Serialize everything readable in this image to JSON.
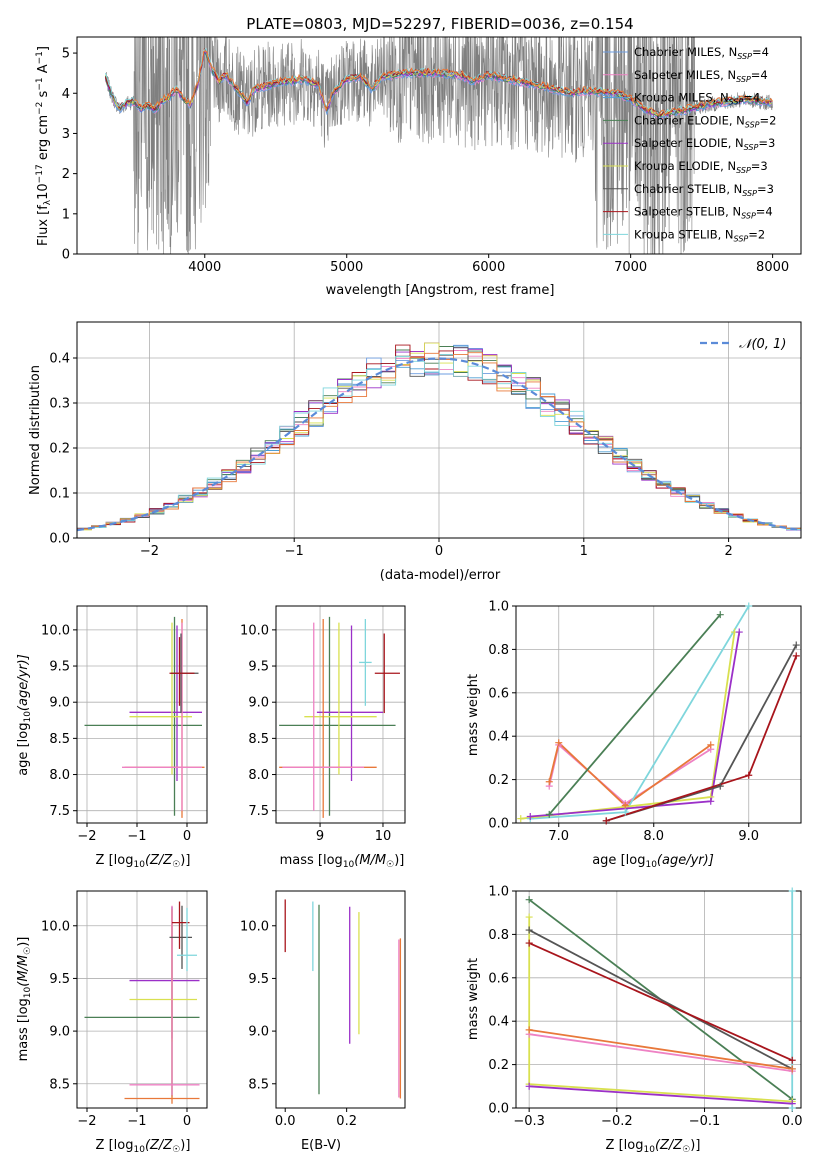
{
  "figure": {
    "title": "PLATE=0803, MJD=52297, FIBERID=0036, z=0.154"
  },
  "colors": {
    "chabrier_miles": "#6e9de0",
    "salpeter_miles": "#ee82c4",
    "kroupa_miles": "#4f9fd4",
    "chabrier_elodie": "#4a7f55",
    "salpeter_elodie": "#9b30c8",
    "kroupa_elodie": "#d9e050",
    "chabrier_stelib": "#555555",
    "salpeter_stelib": "#a8151c",
    "kroupa_stelib": "#7fd6dc",
    "orange": "#e8783a",
    "data": "#808080",
    "normal": "#5b8bd8"
  },
  "chart_data": [
    {
      "id": "spectrum",
      "type": "line",
      "xlabel": "wavelength [Angstrom, rest frame]",
      "ylabel": "Flux [f",
      "ylabel_parts": {
        "lam": "λ",
        "a": "10",
        "b": "−17",
        "c": " erg cm",
        "d": "−2",
        "e": " s",
        "f": "−1",
        "g": " A",
        "h": "−1",
        "i": "]"
      },
      "xlim": [
        3100,
        8200
      ],
      "ylim": [
        0,
        5.4
      ],
      "xticks": [
        4000,
        5000,
        6000,
        7000,
        8000
      ],
      "yticks": [
        0,
        1,
        2,
        3,
        4,
        5
      ],
      "grid": false,
      "legend_position": "top-right",
      "legend": [
        {
          "name": "Chabrier MILES, N",
          "sub": "SSP",
          "val": "=4",
          "color": "#6e9de0"
        },
        {
          "name": "Salpeter MILES, N",
          "sub": "SSP",
          "val": "=4",
          "color": "#ee82c4"
        },
        {
          "name": "Kroupa MILES, N",
          "sub": "SSP",
          "val": "=4",
          "color": "#4f9fd4"
        },
        {
          "name": "Chabrier ELODIE, N",
          "sub": "SSP",
          "val": "=2",
          "color": "#4a7f55"
        },
        {
          "name": "Salpeter ELODIE, N",
          "sub": "SSP",
          "val": "=3",
          "color": "#9b30c8"
        },
        {
          "name": "Kroupa ELODIE, N",
          "sub": "SSP",
          "val": "=3",
          "color": "#d9e050"
        },
        {
          "name": "Chabrier STELIB, N",
          "sub": "SSP",
          "val": "=3",
          "color": "#555555"
        },
        {
          "name": "Salpeter STELIB, N",
          "sub": "SSP",
          "val": "=4",
          "color": "#a8151c"
        },
        {
          "name": "Kroupa STELIB, N",
          "sub": "SSP",
          "val": "=2",
          "color": "#7fd6dc"
        }
      ],
      "continuum": [
        [
          3300,
          4.4
        ],
        [
          3350,
          3.9
        ],
        [
          3400,
          3.6
        ],
        [
          3450,
          3.75
        ],
        [
          3500,
          3.8
        ],
        [
          3550,
          3.6
        ],
        [
          3600,
          3.7
        ],
        [
          3650,
          3.6
        ],
        [
          3700,
          3.8
        ],
        [
          3750,
          3.9
        ],
        [
          3800,
          4.1
        ],
        [
          3850,
          3.85
        ],
        [
          3900,
          3.7
        ],
        [
          3950,
          4.2
        ],
        [
          4000,
          5.1
        ],
        [
          4050,
          4.6
        ],
        [
          4100,
          4.3
        ],
        [
          4150,
          4.45
        ],
        [
          4200,
          4.2
        ],
        [
          4250,
          4.0
        ],
        [
          4300,
          3.75
        ],
        [
          4350,
          4.1
        ],
        [
          4400,
          4.15
        ],
        [
          4500,
          4.25
        ],
        [
          4600,
          4.3
        ],
        [
          4700,
          4.35
        ],
        [
          4800,
          4.2
        ],
        [
          4860,
          3.55
        ],
        [
          4900,
          4.0
        ],
        [
          5000,
          4.35
        ],
        [
          5100,
          4.4
        ],
        [
          5175,
          4.1
        ],
        [
          5250,
          4.4
        ],
        [
          5400,
          4.5
        ],
        [
          5600,
          4.5
        ],
        [
          5800,
          4.45
        ],
        [
          5890,
          4.3
        ],
        [
          6000,
          4.45
        ],
        [
          6200,
          4.3
        ],
        [
          6400,
          4.15
        ],
        [
          6563,
          4.0
        ],
        [
          6700,
          4.05
        ],
        [
          6900,
          4.0
        ],
        [
          7000,
          3.85
        ],
        [
          7100,
          3.6
        ],
        [
          7200,
          3.45
        ],
        [
          7400,
          3.6
        ],
        [
          7600,
          3.75
        ],
        [
          7800,
          3.85
        ],
        [
          8000,
          3.75
        ]
      ]
    },
    {
      "id": "residuals",
      "type": "histogram",
      "xlabel": "(data-model)/error",
      "ylabel": "Normed distribution",
      "xlim": [
        -2.5,
        2.5
      ],
      "ylim": [
        0,
        0.48
      ],
      "xticks": [
        -2,
        -1,
        0,
        1,
        2
      ],
      "yticks": [
        0.0,
        0.1,
        0.2,
        0.3,
        0.4
      ],
      "grid": true,
      "bin_width": 0.1,
      "legend_position": "top-right",
      "legend": [
        {
          "name": "𝒩(0, 1)",
          "color": "#5b8bd8",
          "dashed": true
        }
      ]
    },
    {
      "id": "age_vs_Z",
      "type": "errorbar",
      "xlabel": "Z [log",
      "xlabel_sub": "10",
      "xlabel_tail": "(Z/Z",
      "xlabel_sun": "☉",
      "xlabel_end": ")]",
      "ylabel": "age  [log",
      "ylabel_sub": "10",
      "ylabel_tail": "(age/yr)]",
      "xlim": [
        -2.2,
        0.4
      ],
      "ylim": [
        7.33,
        10.33
      ],
      "xticks": [
        -2,
        -1,
        0
      ],
      "yticks": [
        7.5,
        8.0,
        8.5,
        9.0,
        9.5,
        10.0
      ],
      "grid": true,
      "points": [
        {
          "x": -0.25,
          "y": 8.68,
          "xerr": [
            1.8,
            0.55
          ],
          "yerr": [
            1.25,
            1.5
          ],
          "color": "#4a7f55"
        },
        {
          "x": -0.2,
          "y": 8.86,
          "xerr": [
            0.95,
            0.5
          ],
          "yerr": [
            0.95,
            1.2
          ],
          "color": "#9b30c8"
        },
        {
          "x": -0.3,
          "y": 8.8,
          "xerr": [
            0.85,
            0.4
          ],
          "yerr": [
            0.8,
            1.3
          ],
          "color": "#d9e050"
        },
        {
          "x": -0.1,
          "y": 8.1,
          "xerr": [
            1.15,
            0.45
          ],
          "yerr": [
            0.7,
            2.05
          ],
          "color": "#e8783a"
        },
        {
          "x": -0.1,
          "y": 8.1,
          "xerr": [
            1.2,
            0.4
          ],
          "yerr": [
            0.6,
            2.0
          ],
          "color": "#ee82c4"
        },
        {
          "x": -0.12,
          "y": 9.4,
          "xerr": [
            0.2,
            0.35
          ],
          "yerr": [
            0.55,
            0.55
          ],
          "color": "#555555"
        },
        {
          "x": -0.15,
          "y": 9.4,
          "xerr": [
            0.2,
            0.3
          ],
          "yerr": [
            0.45,
            0.5
          ],
          "color": "#a8151c"
        }
      ]
    },
    {
      "id": "age_vs_mass",
      "type": "errorbar",
      "xlabel": "mass [log",
      "xlabel_sub": "10",
      "xlabel_tail": "(M/M",
      "xlabel_sun": "☉",
      "xlabel_end": ")]",
      "xlim": [
        8.3,
        10.35
      ],
      "ylim": [
        7.33,
        10.33
      ],
      "xticks": [
        9,
        10
      ],
      "yticks": [
        7.5,
        8.0,
        8.5,
        9.0,
        9.5,
        10.0
      ],
      "grid": true,
      "points": [
        {
          "x": 9.15,
          "y": 8.68,
          "xerr": [
            0.8,
            1.05
          ],
          "yerr": [
            1.25,
            1.5
          ],
          "color": "#4a7f55"
        },
        {
          "x": 9.5,
          "y": 8.86,
          "xerr": [
            0.55,
            0.5
          ],
          "yerr": [
            0.95,
            1.2
          ],
          "color": "#9b30c8"
        },
        {
          "x": 9.3,
          "y": 8.8,
          "xerr": [
            0.55,
            0.6
          ],
          "yerr": [
            0.8,
            1.3
          ],
          "color": "#d9e050"
        },
        {
          "x": 9.05,
          "y": 8.1,
          "xerr": [
            0.7,
            0.85
          ],
          "yerr": [
            0.7,
            2.05
          ],
          "color": "#e8783a"
        },
        {
          "x": 8.9,
          "y": 8.1,
          "xerr": [
            0.5,
            0.8
          ],
          "yerr": [
            0.6,
            2.0
          ],
          "color": "#ee82c4"
        },
        {
          "x": 9.72,
          "y": 9.55,
          "xerr": [
            0.1,
            0.1
          ],
          "yerr": [
            0.6,
            0.6
          ],
          "color": "#7fd6dc"
        },
        {
          "x": 10.02,
          "y": 9.4,
          "xerr": [
            0.15,
            0.25
          ],
          "yerr": [
            0.55,
            0.55
          ],
          "color": "#a8151c"
        }
      ]
    },
    {
      "id": "massweight_vs_age",
      "type": "line",
      "xlabel": "age  [log",
      "xlabel_sub": "10",
      "xlabel_tail": "(age/yr)]",
      "ylabel": "mass weight",
      "xlim": [
        6.55,
        9.55
      ],
      "ylim": [
        0,
        1
      ],
      "xticks": [
        7,
        8,
        9
      ],
      "yticks": [
        0.0,
        0.2,
        0.4,
        0.6,
        0.8,
        1.0
      ],
      "grid": true,
      "series": [
        {
          "color": "#ee82c4",
          "points": [
            [
              6.9,
              0.17
            ],
            [
              7.0,
              0.36
            ],
            [
              7.7,
              0.09
            ],
            [
              8.6,
              0.34
            ]
          ]
        },
        {
          "color": "#e8783a",
          "points": [
            [
              6.9,
              0.19
            ],
            [
              7.0,
              0.37
            ],
            [
              7.7,
              0.08
            ],
            [
              8.6,
              0.36
            ]
          ]
        },
        {
          "color": "#4a7f55",
          "points": [
            [
              6.9,
              0.04
            ],
            [
              8.7,
              0.96
            ]
          ]
        },
        {
          "color": "#7fd6dc",
          "points": [
            [
              6.7,
              0.02
            ],
            [
              7.7,
              0.05
            ],
            [
              9.0,
              1.0
            ]
          ]
        },
        {
          "color": "#d9e050",
          "points": [
            [
              6.6,
              0.02
            ],
            [
              8.6,
              0.12
            ],
            [
              8.85,
              0.88
            ]
          ]
        },
        {
          "color": "#9b30c8",
          "points": [
            [
              6.7,
              0.03
            ],
            [
              8.6,
              0.1
            ],
            [
              8.9,
              0.88
            ]
          ]
        },
        {
          "color": "#555555",
          "points": [
            [
              7.5,
              0.01
            ],
            [
              8.7,
              0.17
            ],
            [
              9.5,
              0.82
            ]
          ]
        },
        {
          "color": "#a8151c",
          "points": [
            [
              7.5,
              0.01
            ],
            [
              9.0,
              0.22
            ],
            [
              9.5,
              0.77
            ]
          ]
        }
      ]
    },
    {
      "id": "mass_vs_Z",
      "type": "errorbar",
      "xlabel": "Z [log",
      "xlabel_sub": "10",
      "xlabel_tail": "(Z/Z",
      "xlabel_sun": "☉",
      "xlabel_end": ")]",
      "ylabel": "mass [log",
      "ylabel_sub": "10",
      "ylabel_tail": "(M/M",
      "ylabel_sun": "☉",
      "ylabel_end": ")]",
      "xlim": [
        -2.2,
        0.4
      ],
      "ylim": [
        8.27,
        10.33
      ],
      "xticks": [
        -2,
        -1,
        0
      ],
      "yticks": [
        8.5,
        9.0,
        9.5,
        10.0
      ],
      "grid": true,
      "points": [
        {
          "x": -0.3,
          "y": 9.13,
          "xerr": [
            1.75,
            0.55
          ],
          "yerr": [
            0.75,
            1.05
          ],
          "color": "#4a7f55"
        },
        {
          "x": -0.3,
          "y": 9.48,
          "xerr": [
            0.85,
            0.55
          ],
          "yerr": [
            0.55,
            0.7
          ],
          "color": "#9b30c8"
        },
        {
          "x": -0.3,
          "y": 9.3,
          "xerr": [
            0.85,
            0.5
          ],
          "yerr": [
            0.4,
            0.85
          ],
          "color": "#d9e050"
        },
        {
          "x": -0.3,
          "y": 8.36,
          "xerr": [
            0.95,
            0.55
          ],
          "yerr": [
            0.05,
            1.8
          ],
          "color": "#e8783a"
        },
        {
          "x": -0.3,
          "y": 8.49,
          "xerr": [
            0.85,
            0.55
          ],
          "yerr": [
            0.1,
            1.7
          ],
          "color": "#ee82c4"
        },
        {
          "x": -0.1,
          "y": 9.89,
          "xerr": [
            0.25,
            0.2
          ],
          "yerr": [
            0.3,
            0.3
          ],
          "color": "#555555"
        },
        {
          "x": -0.15,
          "y": 10.03,
          "xerr": [
            0.15,
            0.2
          ],
          "yerr": [
            0.25,
            0.2
          ],
          "color": "#a8151c"
        },
        {
          "x": 0.0,
          "y": 9.72,
          "xerr": [
            0.2,
            0.2
          ],
          "yerr": [
            0.15,
            0.45
          ],
          "color": "#7fd6dc"
        }
      ]
    },
    {
      "id": "mass_vs_ebv",
      "type": "errorbar",
      "xlabel": "E(B-V)",
      "xlim": [
        -0.03,
        0.39
      ],
      "ylim": [
        8.27,
        10.33
      ],
      "xticks": [
        0.0,
        0.2
      ],
      "yticks": [
        8.5,
        9.0,
        9.5,
        10.0
      ],
      "grid": false,
      "points": [
        {
          "x": 0.0,
          "y": 10.0,
          "xerr": [
            0,
            0
          ],
          "yerr": [
            0.25,
            0.25
          ],
          "color": "#a8151c"
        },
        {
          "x": 0.09,
          "y": 9.9,
          "xerr": [
            0,
            0
          ],
          "yerr": [
            0.33,
            0.33
          ],
          "color": "#7fd6dc"
        },
        {
          "x": 0.11,
          "y": 9.3,
          "xerr": [
            0,
            0
          ],
          "yerr": [
            0.9,
            0.9
          ],
          "color": "#4a7f55"
        },
        {
          "x": 0.21,
          "y": 9.53,
          "xerr": [
            0,
            0
          ],
          "yerr": [
            0.65,
            0.65
          ],
          "color": "#9b30c8"
        },
        {
          "x": 0.24,
          "y": 9.55,
          "xerr": [
            0,
            0
          ],
          "yerr": [
            0.58,
            0.58
          ],
          "color": "#d9e050"
        },
        {
          "x": 0.37,
          "y": 9.12,
          "xerr": [
            0,
            0
          ],
          "yerr": [
            0.75,
            0.75
          ],
          "color": "#ee82c4"
        },
        {
          "x": 0.375,
          "y": 9.12,
          "xerr": [
            0,
            0
          ],
          "yerr": [
            0.76,
            0.76
          ],
          "color": "#e8783a"
        }
      ]
    },
    {
      "id": "massweight_vs_Z",
      "type": "line",
      "xlabel": "Z [log",
      "xlabel_sub": "10",
      "xlabel_tail": "(Z/Z",
      "xlabel_sun": "☉",
      "xlabel_end": ")]",
      "ylabel": "mass weight",
      "xlim": [
        -0.315,
        0.01
      ],
      "ylim": [
        0,
        1
      ],
      "xticks": [
        -0.3,
        -0.2,
        -0.1,
        0.0
      ],
      "yticks": [
        0.0,
        0.2,
        0.4,
        0.6,
        0.8,
        1.0
      ],
      "grid": true,
      "series": [
        {
          "color": "#4a7f55",
          "points": [
            [
              -0.3,
              0.96
            ],
            [
              0.0,
              0.04
            ]
          ]
        },
        {
          "color": "#555555",
          "points": [
            [
              -0.3,
              0.82
            ],
            [
              0.0,
              0.18
            ]
          ]
        },
        {
          "color": "#a8151c",
          "points": [
            [
              -0.3,
              0.76
            ],
            [
              0.0,
              0.22
            ]
          ]
        },
        {
          "color": "#ee82c4",
          "points": [
            [
              -0.3,
              0.34
            ],
            [
              0.0,
              0.17
            ]
          ]
        },
        {
          "color": "#e8783a",
          "points": [
            [
              -0.3,
              0.36
            ],
            [
              0.0,
              0.18
            ]
          ]
        },
        {
          "color": "#d9e050",
          "points": [
            [
              -0.3,
              0.88
            ],
            [
              -0.3,
              0.11
            ],
            [
              0.0,
              0.03
            ]
          ]
        },
        {
          "color": "#9b30c8",
          "points": [
            [
              -0.3,
              0.1
            ],
            [
              0.0,
              0.02
            ]
          ]
        },
        {
          "color": "#7fd6dc",
          "points": [
            [
              0.0,
              1.0
            ],
            [
              0.0,
              0.0
            ]
          ]
        }
      ]
    }
  ]
}
